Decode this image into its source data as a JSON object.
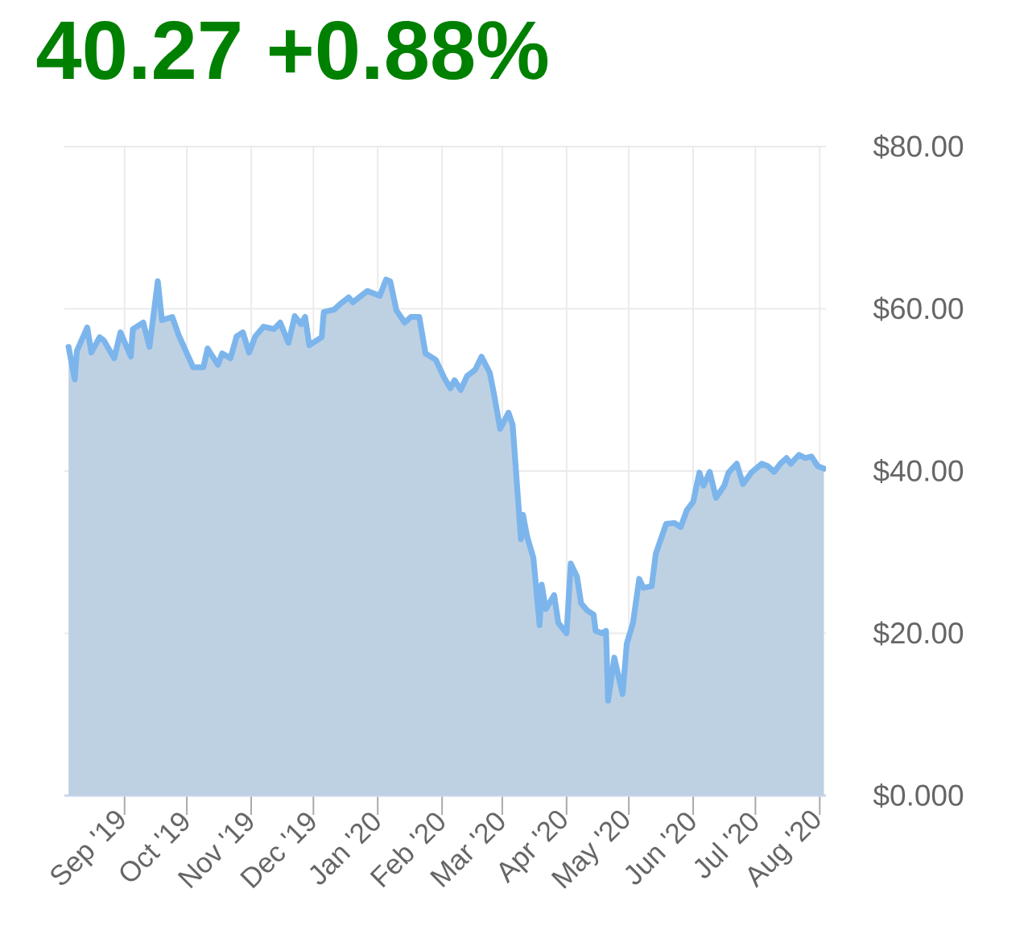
{
  "chart_data": {
    "type": "area",
    "title": "40.27 +0.88%",
    "x": [
      "2019-08-05",
      "2019-08-08",
      "2019-08-09",
      "2019-08-14",
      "2019-08-16",
      "2019-08-20",
      "2019-08-22",
      "2019-08-27",
      "2019-08-30",
      "2019-09-04",
      "2019-09-05",
      "2019-09-10",
      "2019-09-13",
      "2019-09-17",
      "2019-09-19",
      "2019-09-24",
      "2019-09-27",
      "2019-10-04",
      "2019-10-09",
      "2019-10-11",
      "2019-10-16",
      "2019-10-18",
      "2019-10-22",
      "2019-10-25",
      "2019-10-28",
      "2019-10-31",
      "2019-11-03",
      "2019-11-07",
      "2019-11-12",
      "2019-11-15",
      "2019-11-19",
      "2019-11-22",
      "2019-11-25",
      "2019-11-27",
      "2019-11-29",
      "2019-12-05",
      "2019-12-06",
      "2019-12-11",
      "2019-12-14",
      "2019-12-18",
      "2019-12-20",
      "2019-12-27",
      "2020-01-02",
      "2020-01-05",
      "2020-01-07",
      "2020-01-10",
      "2020-01-14",
      "2020-01-17",
      "2020-01-21",
      "2020-01-24",
      "2020-01-29",
      "2020-02-02",
      "2020-02-05",
      "2020-02-07",
      "2020-02-10",
      "2020-02-13",
      "2020-02-17",
      "2020-02-20",
      "2020-02-24",
      "2020-02-26",
      "2020-02-29",
      "2020-03-04",
      "2020-03-06",
      "2020-03-10",
      "2020-03-11",
      "2020-03-13",
      "2020-03-16",
      "2020-03-19",
      "2020-03-20",
      "2020-03-22",
      "2020-03-26",
      "2020-03-28",
      "2020-04-01",
      "2020-04-03",
      "2020-04-06",
      "2020-04-08",
      "2020-04-11",
      "2020-04-14",
      "2020-04-15",
      "2020-04-18",
      "2020-04-20",
      "2020-04-21",
      "2020-04-24",
      "2020-04-28",
      "2020-04-30",
      "2020-05-03",
      "2020-05-06",
      "2020-05-08",
      "2020-05-12",
      "2020-05-14",
      "2020-05-19",
      "2020-05-23",
      "2020-05-26",
      "2020-05-29",
      "2020-06-01",
      "2020-06-04",
      "2020-06-06",
      "2020-06-09",
      "2020-06-12",
      "2020-06-16",
      "2020-06-18",
      "2020-06-22",
      "2020-06-25",
      "2020-06-29",
      "2020-07-04",
      "2020-07-07",
      "2020-07-10",
      "2020-07-13",
      "2020-07-16",
      "2020-07-18",
      "2020-07-22",
      "2020-07-25",
      "2020-07-28",
      "2020-07-31",
      "2020-08-03"
    ],
    "values": [
      55.3,
      51.3,
      54.8,
      57.7,
      54.6,
      56.5,
      56.1,
      53.9,
      57.1,
      54.1,
      57.5,
      58.3,
      55.3,
      63.4,
      58.6,
      59.0,
      56.8,
      52.8,
      52.8,
      55.1,
      53.1,
      54.5,
      53.9,
      56.6,
      57.1,
      54.6,
      56.6,
      57.8,
      57.5,
      58.3,
      55.8,
      59.1,
      58.1,
      59.0,
      55.5,
      56.5,
      59.6,
      59.9,
      60.6,
      61.4,
      60.8,
      62.2,
      61.6,
      63.6,
      63.4,
      59.8,
      58.3,
      59.0,
      59.0,
      54.5,
      53.7,
      51.5,
      50.2,
      51.2,
      50.0,
      51.7,
      52.5,
      54.1,
      52.1,
      49.5,
      45.2,
      47.2,
      45.7,
      31.6,
      34.6,
      31.9,
      29.3,
      21.0,
      26.0,
      23.0,
      24.7,
      21.3,
      20.0,
      28.6,
      27.0,
      23.7,
      22.8,
      22.3,
      20.3,
      20.0,
      20.3,
      11.7,
      17.0,
      12.5,
      18.7,
      21.3,
      26.7,
      25.6,
      25.8,
      29.8,
      33.5,
      33.6,
      33.1,
      35.2,
      36.2,
      39.8,
      38.2,
      39.9,
      36.7,
      38.2,
      39.8,
      40.9,
      38.4,
      39.8,
      40.9,
      40.6,
      39.9,
      40.9,
      41.6,
      40.9,
      42.0,
      41.6,
      41.8,
      40.6,
      40.3
    ],
    "color": "#7cb5ec",
    "xlim": [
      "2019-08-03",
      "2020-08-04"
    ],
    "ylim": [
      0,
      80
    ],
    "xticks": [
      {
        "value": "2019-09-01",
        "label": "Sep '19"
      },
      {
        "value": "2019-10-01",
        "label": "Oct '19"
      },
      {
        "value": "2019-11-01",
        "label": "Nov '19"
      },
      {
        "value": "2019-12-01",
        "label": "Dec '19"
      },
      {
        "value": "2020-01-01",
        "label": "Jan '20"
      },
      {
        "value": "2020-02-01",
        "label": "Feb '20"
      },
      {
        "value": "2020-03-01",
        "label": "Mar '20"
      },
      {
        "value": "2020-04-01",
        "label": "Apr '20"
      },
      {
        "value": "2020-05-01",
        "label": "May '20"
      },
      {
        "value": "2020-06-01",
        "label": "Jun '20"
      },
      {
        "value": "2020-07-01",
        "label": "Jul '20"
      },
      {
        "value": "2020-08-01",
        "label": "Aug '20"
      }
    ],
    "yticks": [
      {
        "value": 0,
        "label": "$0.000"
      },
      {
        "value": 20,
        "label": "$20.00"
      },
      {
        "value": 40,
        "label": "$40.00"
      },
      {
        "value": 60,
        "label": "$60.00"
      },
      {
        "value": 80,
        "label": "$80.00"
      }
    ],
    "grid": true
  }
}
